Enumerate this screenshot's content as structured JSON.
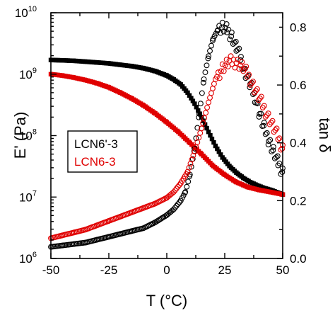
{
  "chart_data": {
    "type": "scatter",
    "title": "",
    "xlabel": "T (°C)",
    "ylabel_left": "E' (Pa)",
    "ylabel_right": "tan δ",
    "xlim": [
      -50,
      50
    ],
    "ylim_left_log10": [
      6,
      10
    ],
    "ylim_right": [
      0.0,
      0.85
    ],
    "x_ticks": [
      "-50",
      "-25",
      "0",
      "25",
      "50"
    ],
    "y_left_ticks": [
      {
        "base": "10",
        "exp": "6"
      },
      {
        "base": "10",
        "exp": "7"
      },
      {
        "base": "10",
        "exp": "8"
      },
      {
        "base": "10",
        "exp": "9"
      },
      {
        "base": "10",
        "exp": "10"
      }
    ],
    "y_right_ticks": [
      "0.0",
      "0.2",
      "0.4",
      "0.6",
      "0.8"
    ],
    "legend": {
      "placement": "left-middle",
      "entries": [
        {
          "label": "LCN6'-3",
          "color": "#000000"
        },
        {
          "label": "LCN6-3",
          "color": "#e00000"
        }
      ]
    },
    "series": [
      {
        "name": "LCN6'-3",
        "quantity": "E'",
        "axis": "left",
        "color": "#000000",
        "marker": "square-filled",
        "x": [
          -50,
          -45,
          -40,
          -35,
          -30,
          -25,
          -20,
          -15,
          -10,
          -5,
          0,
          3,
          6,
          9,
          12,
          15,
          18,
          21,
          24,
          27,
          30,
          33,
          36,
          39,
          42,
          45,
          50
        ],
        "y": [
          1700000000.0,
          1680000000.0,
          1650000000.0,
          1600000000.0,
          1550000000.0,
          1500000000.0,
          1420000000.0,
          1350000000.0,
          1250000000.0,
          1120000000.0,
          950000000.0,
          820000000.0,
          680000000.0,
          500000000.0,
          330000000.0,
          200000000.0,
          115000000.0,
          68000000.0,
          44000000.0,
          32000000.0,
          25000000.0,
          20500000.0,
          17500000.0,
          15500000.0,
          14000000.0,
          13000000.0,
          11000000.0
        ]
      },
      {
        "name": "LCN6-3",
        "quantity": "E'",
        "axis": "left",
        "color": "#e00000",
        "marker": "square-filled",
        "x": [
          -50,
          -45,
          -40,
          -35,
          -30,
          -25,
          -20,
          -15,
          -10,
          -5,
          0,
          5,
          10,
          15,
          20,
          25,
          30,
          35,
          40,
          45,
          50
        ],
        "y": [
          1000000000.0,
          950000000.0,
          880000000.0,
          800000000.0,
          710000000.0,
          610000000.0,
          500000000.0,
          400000000.0,
          310000000.0,
          230000000.0,
          165000000.0,
          115000000.0,
          76000000.0,
          50000000.0,
          32000000.0,
          23000000.0,
          17500000.0,
          14500000.0,
          13000000.0,
          12000000.0,
          11000000.0
        ]
      },
      {
        "name": "LCN6'-3",
        "quantity": "tan δ",
        "axis": "right",
        "color": "#000000",
        "marker": "circle-open",
        "x": [
          -50,
          -45,
          -40,
          -35,
          -30,
          -25,
          -20,
          -15,
          -10,
          -5,
          0,
          3,
          6,
          8,
          10,
          12,
          14,
          16,
          18,
          20,
          22,
          24,
          26,
          28,
          30,
          32,
          34,
          36,
          38,
          40,
          42,
          44,
          46,
          48,
          50
        ],
        "y": [
          0.04,
          0.045,
          0.05,
          0.055,
          0.065,
          0.075,
          0.085,
          0.095,
          0.105,
          0.125,
          0.15,
          0.17,
          0.2,
          0.23,
          0.29,
          0.38,
          0.5,
          0.62,
          0.7,
          0.76,
          0.79,
          0.8,
          0.79,
          0.77,
          0.73,
          0.69,
          0.64,
          0.6,
          0.56,
          0.5,
          0.45,
          0.41,
          0.37,
          0.33,
          0.3
        ]
      },
      {
        "name": "LCN6-3",
        "quantity": "tan δ",
        "axis": "right",
        "color": "#e00000",
        "marker": "circle-open",
        "x": [
          -50,
          -45,
          -40,
          -35,
          -30,
          -25,
          -20,
          -15,
          -10,
          -5,
          0,
          3,
          6,
          9,
          12,
          15,
          18,
          21,
          24,
          27,
          30,
          33,
          36,
          39,
          42,
          45,
          48,
          50
        ],
        "y": [
          0.07,
          0.08,
          0.09,
          0.1,
          0.115,
          0.13,
          0.145,
          0.16,
          0.175,
          0.19,
          0.21,
          0.23,
          0.26,
          0.3,
          0.37,
          0.45,
          0.54,
          0.62,
          0.66,
          0.68,
          0.68,
          0.66,
          0.62,
          0.57,
          0.52,
          0.47,
          0.42,
          0.38
        ]
      }
    ]
  }
}
